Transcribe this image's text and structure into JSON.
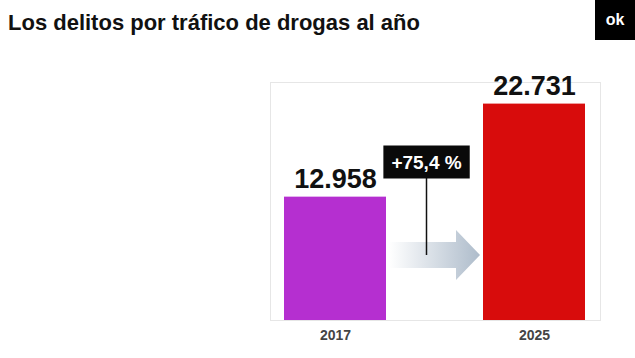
{
  "chart_data": {
    "type": "bar",
    "title": "Los delitos por tráfico de drogas al año",
    "categories": [
      "2017",
      "2025"
    ],
    "values": [
      12958,
      22731
    ],
    "value_labels": [
      "12.958",
      "22.731"
    ],
    "colors": [
      "#b52fd0",
      "#d80c0c"
    ],
    "ylim": [
      0,
      25000
    ],
    "data_labels": true,
    "tick_labels": "x",
    "annotation": "+75,4 %"
  },
  "logo": "ok"
}
